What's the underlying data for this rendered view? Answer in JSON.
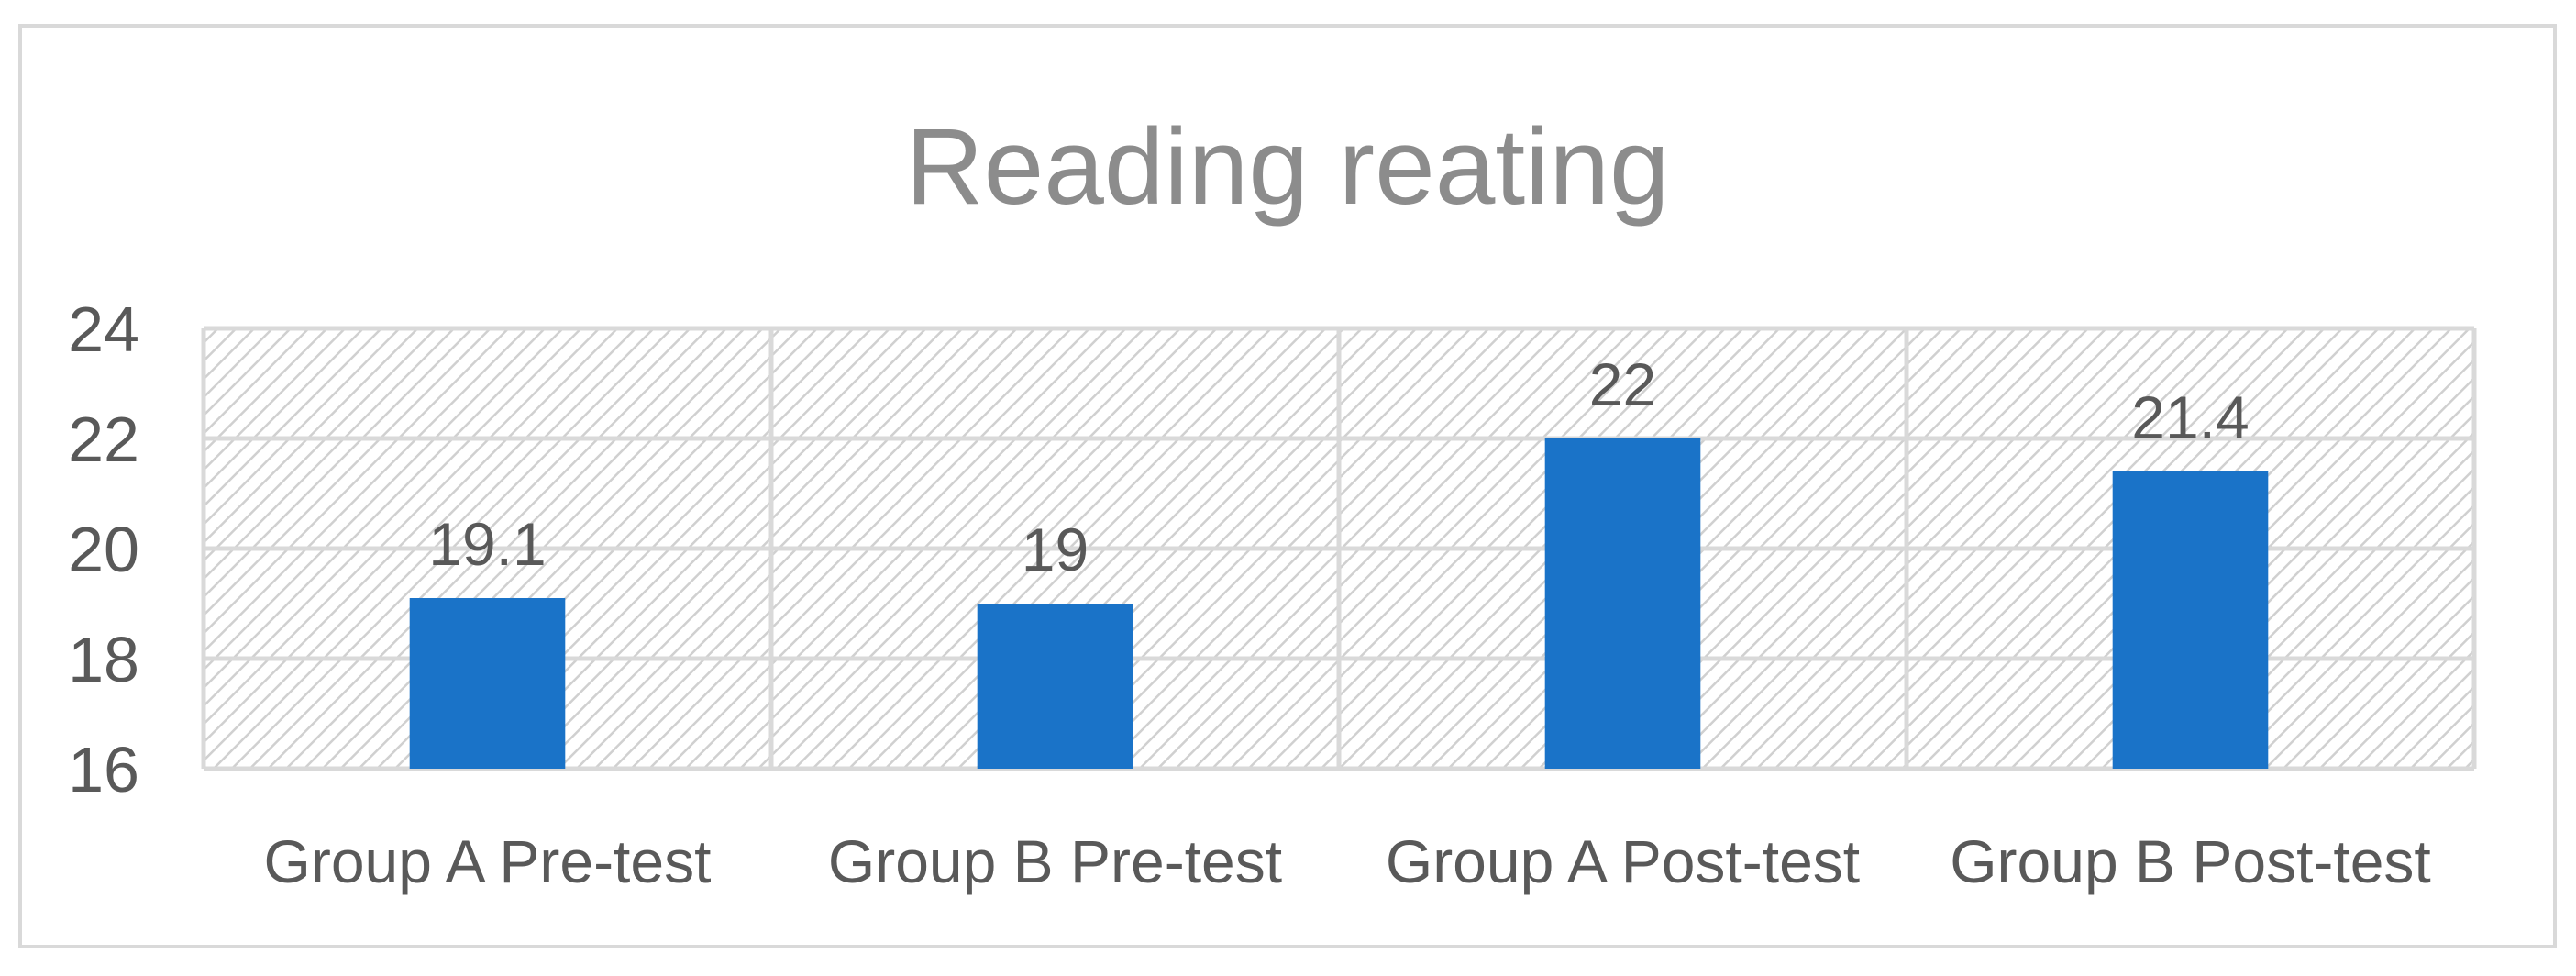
{
  "chart_data": {
    "type": "bar",
    "title": "Reading reating",
    "categories": [
      "Group A Pre-test",
      "Group B Pre-test",
      "Group A Post-test",
      "Group B Post-test"
    ],
    "values": [
      19.1,
      19,
      22,
      21.4
    ],
    "data_labels": [
      "19.1",
      "19",
      "22",
      "21.4"
    ],
    "xlabel": "",
    "ylabel": "",
    "ylim": [
      16,
      24
    ],
    "yticks": [
      16,
      18,
      20,
      22,
      24
    ],
    "ytick_labels": [
      "16",
      "18",
      "20",
      "22",
      "24"
    ],
    "grid": true,
    "legend": "none",
    "plot_background": "diagonal hatch",
    "colors": {
      "bar": "#1a73c8",
      "text": "#595959",
      "title": "#8c8c8c",
      "grid": "#d9d9d9",
      "hatch": "#d0d0d0",
      "frame": "#d9d9d9"
    }
  }
}
